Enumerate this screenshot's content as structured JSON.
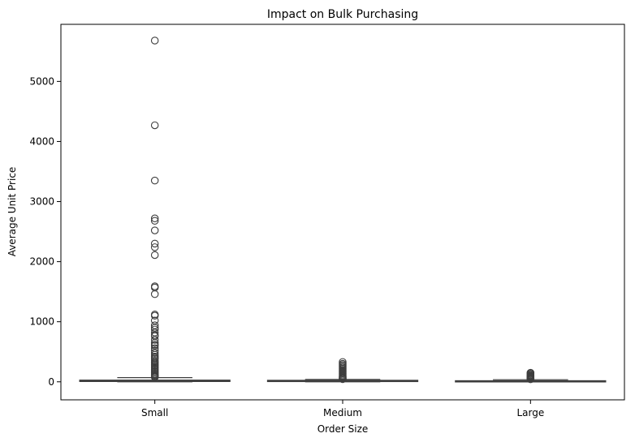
{
  "chart_data": {
    "type": "box",
    "title": "Impact on Bulk Purchasing",
    "xlabel": "Order Size",
    "ylabel": "Average Unit Price",
    "categories": [
      "Small",
      "Medium",
      "Large"
    ],
    "ylim": [
      -300,
      5950
    ],
    "yticks": [
      0,
      1000,
      2000,
      3000,
      4000,
      5000
    ],
    "grid": false,
    "boxes": [
      {
        "category": "Small",
        "whisker_low": 0,
        "q1": 5,
        "median": 15,
        "q3": 28,
        "whisker_high": 70,
        "outliers": [
          5680,
          4270,
          3350,
          2720,
          2680,
          2520,
          2300,
          2240,
          2110,
          1590,
          1570,
          1460,
          1120,
          1100,
          1020,
          940,
          900,
          870,
          820,
          780,
          760,
          700,
          650,
          620,
          600,
          560,
          520,
          480,
          450,
          420,
          400,
          380,
          350,
          330,
          310,
          290,
          270,
          250,
          230,
          210,
          190,
          170,
          150,
          130,
          110,
          95,
          85,
          78
        ]
      },
      {
        "category": "Medium",
        "whisker_low": 0,
        "q1": 4,
        "median": 12,
        "q3": 25,
        "whisker_high": 40,
        "outliers": [
          330,
          300,
          280,
          260,
          240,
          220,
          200,
          180,
          160,
          140,
          120,
          100,
          85,
          70,
          60,
          50,
          45
        ]
      },
      {
        "category": "Large",
        "whisker_low": 0,
        "q1": 2,
        "median": 5,
        "q3": 18,
        "whisker_high": 35,
        "outliers": [
          150,
          135,
          120,
          105,
          95,
          85,
          75,
          65,
          55,
          48,
          42
        ]
      }
    ],
    "colors": {
      "box_stroke": "#3d3d3d",
      "box_fill": "#ffffff",
      "axis": "#000000"
    }
  }
}
